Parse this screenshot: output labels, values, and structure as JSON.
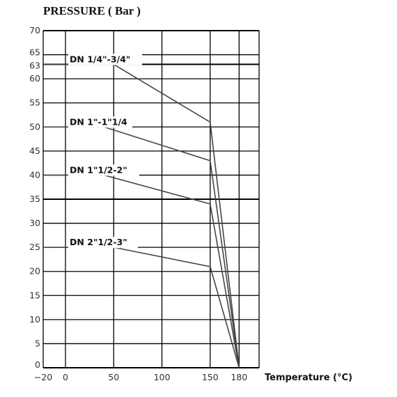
{
  "chart_data": {
    "type": "line",
    "title": "PRESSURE ( Bar )",
    "xlabel": "Temperature (°C)",
    "ylabel": "",
    "xlim": [
      -20,
      200
    ],
    "ylim": [
      0,
      70
    ],
    "x_ticks": [
      -20,
      0,
      50,
      100,
      150,
      180
    ],
    "y_ticks": [
      0,
      5,
      10,
      15,
      20,
      25,
      30,
      35,
      40,
      45,
      50,
      55,
      60,
      63,
      65,
      70
    ],
    "grid": true,
    "series": [
      {
        "name": "DN 1/4\"-3/4\"",
        "x": [
          -20,
          50,
          150,
          180
        ],
        "y": [
          63,
          63,
          51,
          0
        ]
      },
      {
        "name": "DN 1\"-1\"1/4",
        "x": [
          -20,
          40,
          150,
          180
        ],
        "y": [
          50,
          50,
          43,
          0
        ]
      },
      {
        "name": "DN 1\"1/2-2\"",
        "x": [
          -20,
          40,
          150,
          180
        ],
        "y": [
          40,
          40,
          34,
          0
        ]
      },
      {
        "name": "DN 2\"1/2-3\"",
        "x": [
          -20,
          50,
          150,
          180
        ],
        "y": [
          25,
          25,
          21,
          0
        ]
      }
    ]
  }
}
